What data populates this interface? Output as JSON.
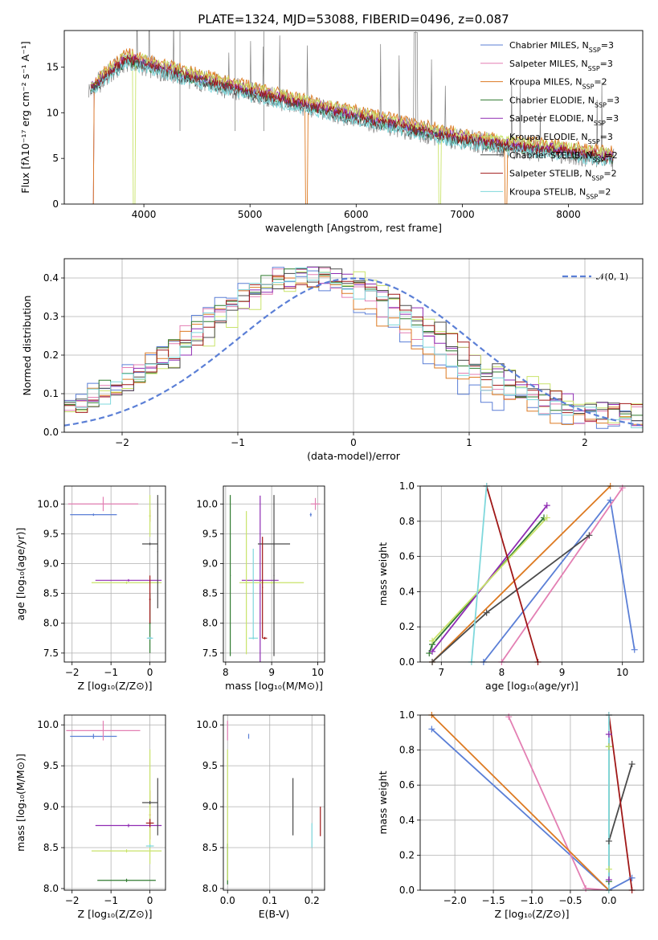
{
  "colors": {
    "Chabrier MILES": "#5b7fd6",
    "Salpeter MILES": "#e37fb3",
    "Kroupa MILES": "#dd7a22",
    "Chabrier ELODIE": "#2f7a2f",
    "Salpeter ELODIE": "#8f2bb3",
    "Kroupa ELODIE": "#c9e36a",
    "Chabrier STELIB": "#4a4a4a",
    "Salpeter STELIB": "#a01818",
    "Kroupa STELIB": "#7fd8dc",
    "data": "#808080",
    "normal": "#5b7fd6",
    "grid": "#b0b0b0"
  },
  "figure_title": "PLATE=1324, MJD=53088, FIBERID=0496, z=0.087",
  "chart_data": [
    {
      "id": "spectrum",
      "type": "line",
      "xlabel": "wavelength [Angstrom, rest frame]",
      "ylabel": "Flux [fλ10⁻¹⁷ erg cm⁻² s⁻¹ A⁻¹]",
      "xlim": [
        3250,
        8700
      ],
      "ylim": [
        0,
        19
      ],
      "xticks": [
        4000,
        5000,
        6000,
        7000,
        8000
      ],
      "yticks": [
        0,
        5,
        10,
        15
      ],
      "grid": false,
      "legend": "top-right",
      "continuum": [
        [
          3500,
          12.5
        ],
        [
          3700,
          14.5
        ],
        [
          3850,
          15.8
        ],
        [
          4000,
          15.2
        ],
        [
          4200,
          14.6
        ],
        [
          4500,
          13.6
        ],
        [
          5000,
          12.2
        ],
        [
          5500,
          10.8
        ],
        [
          6000,
          9.5
        ],
        [
          6500,
          8.2
        ],
        [
          7000,
          7.0
        ],
        [
          7500,
          6.2
        ],
        [
          8000,
          5.6
        ],
        [
          8400,
          5.0
        ]
      ],
      "series": [
        {
          "name": "Chabrier MILES, N_SSP=3",
          "offset": 0.2,
          "drop": [
            [
              3500,
              3530
            ]
          ]
        },
        {
          "name": "Salpeter MILES, N_SSP=3",
          "offset": 0.4,
          "drop": [
            [
              3500,
              3530
            ]
          ]
        },
        {
          "name": "Kroupa MILES, N_SSP=2",
          "offset": 0.8,
          "drop": [
            [
              3500,
              3530
            ],
            [
              5520,
              5540
            ],
            [
              7400,
              7420
            ]
          ]
        },
        {
          "name": "Chabrier ELODIE, N_SSP=3",
          "offset": 0.0,
          "drop": []
        },
        {
          "name": "Salpeter ELODIE, N_SSP=3",
          "offset": 0.3,
          "drop": []
        },
        {
          "name": "Kroupa ELODIE, N_SSP=3",
          "offset": 0.6,
          "drop": [
            [
              3900,
              3920
            ],
            [
              6780,
              6800
            ]
          ]
        },
        {
          "name": "Chabrier STELIB, N_SSP=2",
          "offset": -0.2,
          "drop": []
        },
        {
          "name": "Salpeter STELIB, N_SSP=2",
          "offset": 0.1,
          "drop": []
        },
        {
          "name": "Kroupa STELIB, N_SSP=2",
          "offset": -0.4,
          "drop": []
        }
      ]
    },
    {
      "id": "residuals",
      "type": "line",
      "xlabel": "(data-model)/error",
      "ylabel": "Normed distribution",
      "xlim": [
        -2.5,
        2.5
      ],
      "ylim": [
        0,
        0.45
      ],
      "xticks": [
        -2,
        -1,
        0,
        1,
        2
      ],
      "yticks": [
        0.0,
        0.1,
        0.2,
        0.3,
        0.4
      ],
      "grid": true,
      "legend": "top-right",
      "normal_label": "𝒩(0, 1)",
      "bin_width": 0.1,
      "series": [
        {
          "name": "Chabrier MILES",
          "shift": -0.55,
          "width": 0.9
        },
        {
          "name": "Salpeter MILES",
          "shift": -0.45,
          "width": 0.95
        },
        {
          "name": "Kroupa MILES",
          "shift": -0.5,
          "width": 0.9
        },
        {
          "name": "Chabrier ELODIE",
          "shift": -0.35,
          "width": 1.0
        },
        {
          "name": "Salpeter ELODIE",
          "shift": -0.3,
          "width": 1.0
        },
        {
          "name": "Kroupa ELODIE",
          "shift": -0.2,
          "width": 1.0
        },
        {
          "name": "Chabrier STELIB",
          "shift": -0.25,
          "width": 1.0
        },
        {
          "name": "Salpeter STELIB",
          "shift": -0.3,
          "width": 1.0
        },
        {
          "name": "Kroupa STELIB",
          "shift": -0.4,
          "width": 0.95
        }
      ]
    },
    {
      "id": "age_vs_Z",
      "type": "scatter",
      "xlabel": "Z [log₁₀(Z/Z⊙)]",
      "ylabel": "age  [log₁₀(age/yr)]",
      "xlim": [
        -2.2,
        0.4
      ],
      "ylim": [
        7.35,
        10.3
      ],
      "xticks": [
        -2,
        -1,
        0
      ],
      "yticks": [
        7.5,
        8.0,
        8.5,
        9.0,
        9.5,
        10.0
      ],
      "grid": true,
      "points": [
        {
          "s": "Chabrier MILES",
          "x": -1.45,
          "y": 9.82,
          "xerr": 0.6,
          "yerr": 0.02
        },
        {
          "s": "Chabrier MILES",
          "x": 0.0,
          "y": 7.75,
          "xerr": 0.05,
          "yerr": 0.02
        },
        {
          "s": "Salpeter MILES",
          "x": -1.2,
          "y": 10.0,
          "xerr": 0.9,
          "yerr": 0.12
        },
        {
          "s": "Kroupa MILES",
          "x": 0.0,
          "y": 9.8,
          "xerr": 0.02,
          "yerr": 0.1
        },
        {
          "s": "Chabrier ELODIE",
          "x": 0.0,
          "y": 8.0,
          "xerr": 0.02,
          "yerr": 0.5
        },
        {
          "s": "Salpeter ELODIE",
          "x": -0.55,
          "y": 8.72,
          "xerr": 0.85,
          "yerr": 0.02
        },
        {
          "s": "Kroupa ELODIE",
          "x": -0.6,
          "y": 8.68,
          "xerr": 0.9,
          "yerr": 0.02
        },
        {
          "s": "Kroupa ELODIE",
          "x": 0.0,
          "y": 9.8,
          "xerr": 0.02,
          "yerr": 0.35
        },
        {
          "s": "Chabrier STELIB",
          "x": 0.0,
          "y": 9.33,
          "xerr": 0.2,
          "yerr": 0.02
        },
        {
          "s": "Chabrier STELIB",
          "x": 0.2,
          "y": 9.2,
          "xerr": 0.01,
          "yerr": 0.95
        },
        {
          "s": "Salpeter STELIB",
          "x": 0.0,
          "y": 8.4,
          "xerr": 0.02,
          "yerr": 0.4
        },
        {
          "s": "Kroupa STELIB",
          "x": 0.0,
          "y": 7.75,
          "xerr": 0.08,
          "yerr": 0.02
        }
      ]
    },
    {
      "id": "age_vs_mass",
      "type": "scatter",
      "xlabel": "mass [log₁₀(M/M⊙)]",
      "ylabel": "",
      "xlim": [
        7.95,
        10.15
      ],
      "ylim": [
        7.35,
        10.3
      ],
      "xticks": [
        8,
        9,
        10
      ],
      "yticks": [
        7.5,
        8.0,
        8.5,
        9.0,
        9.5,
        10.0
      ],
      "grid": true,
      "points": [
        {
          "s": "Chabrier MILES",
          "x": 9.85,
          "y": 9.82,
          "xerr": 0.02,
          "yerr": 0.03
        },
        {
          "s": "Salpeter MILES",
          "x": 9.95,
          "y": 10.0,
          "xerr": 0.1,
          "yerr": 0.1
        },
        {
          "s": "Chabrier ELODIE",
          "x": 8.1,
          "y": 8.8,
          "xerr": 0.01,
          "yerr": 1.35
        },
        {
          "s": "Salpeter ELODIE",
          "x": 8.75,
          "y": 8.72,
          "xerr": 0.4,
          "yerr": 1.42
        },
        {
          "s": "Kroupa ELODIE",
          "x": 8.45,
          "y": 8.68,
          "xerr": 0.02,
          "yerr": 1.2
        },
        {
          "s": "Kroupa ELODIE",
          "x": 9.0,
          "y": 8.68,
          "xerr": 0.7,
          "yerr": 0.02
        },
        {
          "s": "Chabrier STELIB",
          "x": 9.05,
          "y": 9.33,
          "xerr": 0.35,
          "yerr": 0.02
        },
        {
          "s": "Chabrier STELIB",
          "x": 9.05,
          "y": 8.8,
          "xerr": 0.01,
          "yerr": 1.35
        },
        {
          "s": "Salpeter STELIB",
          "x": 8.85,
          "y": 7.75,
          "xerr": 0.05,
          "yerr": 0.02
        },
        {
          "s": "Salpeter STELIB",
          "x": 8.8,
          "y": 8.6,
          "xerr": 0.01,
          "yerr": 0.85
        },
        {
          "s": "Kroupa STELIB",
          "x": 8.6,
          "y": 7.75,
          "xerr": 0.1,
          "yerr": 0.02
        },
        {
          "s": "Kroupa STELIB",
          "x": 8.6,
          "y": 8.5,
          "xerr": 0.01,
          "yerr": 0.75
        }
      ]
    },
    {
      "id": "weight_vs_age",
      "type": "line",
      "xlabel": "age  [log₁₀(age/yr)]",
      "ylabel": "mass weight",
      "xlim": [
        6.65,
        10.35
      ],
      "ylim": [
        0,
        1
      ],
      "xticks": [
        7,
        8,
        9,
        10
      ],
      "yticks": [
        0.0,
        0.2,
        0.4,
        0.6,
        0.8,
        1.0
      ],
      "grid": true,
      "series": [
        {
          "name": "Chabrier MILES",
          "x": [
            7.7,
            9.8,
            10.2
          ],
          "y": [
            0.0,
            0.92,
            0.07
          ]
        },
        {
          "name": "Salpeter MILES",
          "x": [
            8.0,
            10.0
          ],
          "y": [
            0.0,
            0.99
          ]
        },
        {
          "name": "Kroupa MILES",
          "x": [
            6.85,
            9.8
          ],
          "y": [
            0.0,
            1.0
          ]
        },
        {
          "name": "Chabrier ELODIE",
          "x": [
            6.8,
            6.85,
            8.7
          ],
          "y": [
            0.05,
            0.1,
            0.82
          ]
        },
        {
          "name": "Salpeter ELODIE",
          "x": [
            6.85,
            8.75
          ],
          "y": [
            0.06,
            0.89
          ]
        },
        {
          "name": "Kroupa ELODIE",
          "x": [
            6.85,
            8.75
          ],
          "y": [
            0.12,
            0.82
          ]
        },
        {
          "name": "Chabrier STELIB",
          "x": [
            6.85,
            7.75,
            9.45
          ],
          "y": [
            0.0,
            0.28,
            0.72
          ]
        },
        {
          "name": "Salpeter STELIB",
          "x": [
            7.75,
            8.6
          ],
          "y": [
            1.0,
            0.0
          ]
        },
        {
          "name": "Kroupa STELIB",
          "x": [
            7.5,
            7.75
          ],
          "y": [
            0.0,
            1.0
          ]
        }
      ]
    },
    {
      "id": "mass_vs_Z",
      "type": "scatter",
      "xlabel": "Z [log₁₀(Z/Z⊙)]",
      "ylabel": "mass [log₁₀(M/M⊙)]",
      "xlim": [
        -2.2,
        0.4
      ],
      "ylim": [
        7.98,
        10.12
      ],
      "xticks": [
        -2,
        -1,
        0
      ],
      "yticks": [
        8.0,
        8.5,
        9.0,
        9.5,
        10.0
      ],
      "grid": true,
      "points": [
        {
          "s": "Chabrier MILES",
          "x": -1.45,
          "y": 9.86,
          "xerr": 0.6,
          "yerr": 0.03
        },
        {
          "s": "Salpeter MILES",
          "x": -1.2,
          "y": 9.93,
          "xerr": 0.95,
          "yerr": 0.12
        },
        {
          "s": "Kroupa MILES",
          "x": 0.0,
          "y": 8.9,
          "xerr": 0.02,
          "yerr": 0.3
        },
        {
          "s": "Chabrier ELODIE",
          "x": -0.6,
          "y": 8.1,
          "xerr": 0.75,
          "yerr": 0.02
        },
        {
          "s": "Salpeter ELODIE",
          "x": -0.55,
          "y": 8.77,
          "xerr": 0.85,
          "yerr": 0.02
        },
        {
          "s": "Kroupa ELODIE",
          "x": -0.6,
          "y": 8.46,
          "xerr": 0.9,
          "yerr": 0.02
        },
        {
          "s": "Kroupa ELODIE",
          "x": 0.0,
          "y": 9.0,
          "xerr": 0.02,
          "yerr": 0.7
        },
        {
          "s": "Chabrier STELIB",
          "x": 0.0,
          "y": 9.05,
          "xerr": 0.2,
          "yerr": 0.02
        },
        {
          "s": "Chabrier STELIB",
          "x": 0.2,
          "y": 9.0,
          "xerr": 0.01,
          "yerr": 0.35
        },
        {
          "s": "Salpeter STELIB",
          "x": 0.0,
          "y": 8.8,
          "xerr": 0.1,
          "yerr": 0.05
        },
        {
          "s": "Kroupa STELIB",
          "x": 0.0,
          "y": 8.52,
          "xerr": 0.1,
          "yerr": 0.02
        }
      ]
    },
    {
      "id": "mass_vs_ebv",
      "type": "scatter",
      "xlabel": "E(B-V)",
      "ylabel": "",
      "xlim": [
        -0.01,
        0.23
      ],
      "ylim": [
        7.98,
        10.12
      ],
      "xticks": [
        0.0,
        0.1,
        0.2
      ],
      "yticks": [
        8.0,
        8.5,
        9.0,
        9.5,
        10.0
      ],
      "grid": true,
      "points": [
        {
          "s": "Chabrier MILES",
          "x": 0.05,
          "y": 9.86,
          "xerr": 0.0,
          "yerr": 0.03
        },
        {
          "s": "Salpeter MILES",
          "x": 0.0,
          "y": 9.93,
          "xerr": 0.0,
          "yerr": 0.12
        },
        {
          "s": "Chabrier ELODIE",
          "x": 0.0,
          "y": 8.3,
          "xerr": 0.0,
          "yerr": 0.25
        },
        {
          "s": "Kroupa ELODIE",
          "x": 0.0,
          "y": 8.9,
          "xerr": 0.0,
          "yerr": 0.8
        },
        {
          "s": "Chabrier STELIB",
          "x": 0.155,
          "y": 9.0,
          "xerr": 0.0,
          "yerr": 0.35
        },
        {
          "s": "Salpeter STELIB",
          "x": 0.22,
          "y": 8.82,
          "xerr": 0.0,
          "yerr": 0.18
        },
        {
          "s": "Kroupa STELIB",
          "x": 0.2,
          "y": 8.65,
          "xerr": 0.0,
          "yerr": 0.15
        }
      ]
    },
    {
      "id": "weight_vs_Z",
      "type": "line",
      "xlabel": "Z [log₁₀(Z/Z⊙)]",
      "ylabel": "mass weight",
      "xlim": [
        -2.45,
        0.45
      ],
      "ylim": [
        0,
        1
      ],
      "xticks": [
        -2.0,
        -1.5,
        -1.0,
        -0.5,
        0.0
      ],
      "yticks": [
        0.0,
        0.2,
        0.4,
        0.6,
        0.8,
        1.0
      ],
      "grid": true,
      "series": [
        {
          "name": "Chabrier MILES",
          "x": [
            -2.3,
            0.0,
            0.3
          ],
          "y": [
            0.92,
            0.0,
            0.07
          ]
        },
        {
          "name": "Salpeter MILES",
          "x": [
            -1.3,
            -0.3,
            0.0
          ],
          "y": [
            0.99,
            0.01,
            0.0
          ]
        },
        {
          "name": "Kroupa MILES",
          "x": [
            -2.3,
            0.0
          ],
          "y": [
            1.0,
            0.0
          ]
        },
        {
          "name": "Chabrier ELODIE",
          "x": [
            0.0,
            0.0
          ],
          "y": [
            0.05,
            0.82
          ]
        },
        {
          "name": "Salpeter ELODIE",
          "x": [
            0.0,
            0.0
          ],
          "y": [
            0.06,
            0.89
          ]
        },
        {
          "name": "Kroupa ELODIE",
          "x": [
            0.0,
            0.0
          ],
          "y": [
            0.12,
            0.82
          ]
        },
        {
          "name": "Chabrier STELIB",
          "x": [
            0.0,
            0.3
          ],
          "y": [
            0.28,
            0.72
          ]
        },
        {
          "name": "Salpeter STELIB",
          "x": [
            0.0,
            0.3
          ],
          "y": [
            1.0,
            0.0
          ]
        },
        {
          "name": "Kroupa STELIB",
          "x": [
            0.0,
            0.0
          ],
          "y": [
            0.0,
            1.0
          ]
        }
      ]
    }
  ]
}
